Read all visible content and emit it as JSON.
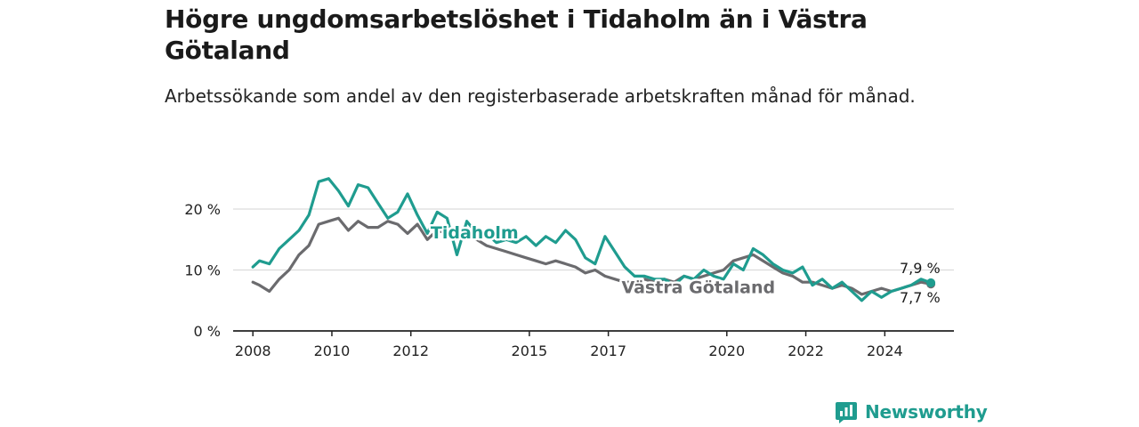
{
  "title": "Högre ungdomsarbetslöshet i Tidaholm än i Västra Götaland",
  "subtitle": "Arbetssökande som andel av den registerbaserade arbetskraften månad för månad.",
  "brand": {
    "name": "Newsworthy",
    "logo_icon": "newsworthy-logo-icon"
  },
  "colors": {
    "tidaholm": "#1f9c8f",
    "vastra_gotaland": "#6b6b6e",
    "grid": "#dcdcdc",
    "axis": "#222222"
  },
  "chart_data": {
    "type": "line",
    "title": "Högre ungdomsarbetslöshet i Tidaholm än i Västra Götaland",
    "xlabel": "",
    "ylabel": "",
    "ylim": [
      0,
      26
    ],
    "xlim": [
      "2007-07",
      "2025-10"
    ],
    "y_ticks": [
      0,
      10,
      20
    ],
    "y_tick_labels": [
      "0 %",
      "10 %",
      "20 %"
    ],
    "x_ticks": [
      "2008",
      "2010",
      "2012",
      "2015",
      "2017",
      "2020",
      "2022",
      "2024"
    ],
    "grid": true,
    "series": [
      {
        "name": "Tidaholm",
        "color": "#1f9c8f",
        "end_label": "7,9 %",
        "x": [
          "2008-01",
          "2008-03",
          "2008-06",
          "2008-09",
          "2008-12",
          "2009-03",
          "2009-06",
          "2009-09",
          "2009-12",
          "2010-03",
          "2010-06",
          "2010-09",
          "2010-12",
          "2011-03",
          "2011-06",
          "2011-09",
          "2011-12",
          "2012-03",
          "2012-06",
          "2012-09",
          "2012-12",
          "2013-03",
          "2013-06",
          "2013-09",
          "2013-12",
          "2014-03",
          "2014-06",
          "2014-09",
          "2014-12",
          "2015-03",
          "2015-06",
          "2015-09",
          "2015-12",
          "2016-03",
          "2016-06",
          "2016-09",
          "2016-12",
          "2017-03",
          "2017-06",
          "2017-09",
          "2017-12",
          "2018-03",
          "2018-06",
          "2018-09",
          "2018-12",
          "2019-03",
          "2019-06",
          "2019-09",
          "2019-12",
          "2020-03",
          "2020-06",
          "2020-09",
          "2020-12",
          "2021-03",
          "2021-06",
          "2021-09",
          "2021-12",
          "2022-03",
          "2022-06",
          "2022-09",
          "2022-12",
          "2023-03",
          "2023-06",
          "2023-09",
          "2023-12",
          "2024-03",
          "2024-06",
          "2024-09",
          "2024-12",
          "2025-03"
        ],
        "y": [
          10.5,
          11.5,
          11.0,
          13.5,
          15.0,
          16.5,
          19.0,
          24.5,
          25.0,
          23.0,
          20.5,
          24.0,
          23.5,
          21.0,
          18.5,
          19.5,
          22.5,
          19.0,
          16.0,
          19.5,
          18.5,
          12.5,
          18.0,
          16.0,
          16.0,
          14.5,
          15.0,
          14.5,
          15.5,
          14.0,
          15.5,
          14.5,
          16.5,
          15.0,
          12.0,
          11.0,
          15.5,
          13.0,
          10.5,
          9.0,
          9.0,
          8.5,
          8.5,
          7.5,
          9.0,
          8.5,
          10.0,
          9.0,
          8.5,
          11.0,
          10.0,
          13.5,
          12.5,
          11.0,
          10.0,
          9.5,
          10.5,
          7.5,
          8.5,
          7.0,
          8.0,
          6.5,
          5.0,
          6.5,
          5.5,
          6.5,
          7.0,
          7.5,
          8.5,
          7.9
        ]
      },
      {
        "name": "Västra Götaland",
        "color": "#6b6b6e",
        "end_label": "7,7 %",
        "x": [
          "2008-01",
          "2008-03",
          "2008-06",
          "2008-09",
          "2008-12",
          "2009-03",
          "2009-06",
          "2009-09",
          "2009-12",
          "2010-03",
          "2010-06",
          "2010-09",
          "2010-12",
          "2011-03",
          "2011-06",
          "2011-09",
          "2011-12",
          "2012-03",
          "2012-06",
          "2012-09",
          "2012-12",
          "2013-03",
          "2013-06",
          "2013-09",
          "2013-12",
          "2014-03",
          "2014-06",
          "2014-09",
          "2014-12",
          "2015-03",
          "2015-06",
          "2015-09",
          "2015-12",
          "2016-03",
          "2016-06",
          "2016-09",
          "2016-12",
          "2017-03",
          "2017-06",
          "2017-09",
          "2017-12",
          "2018-03",
          "2018-06",
          "2018-09",
          "2018-12",
          "2019-03",
          "2019-06",
          "2019-09",
          "2019-12",
          "2020-03",
          "2020-06",
          "2020-09",
          "2020-12",
          "2021-03",
          "2021-06",
          "2021-09",
          "2021-12",
          "2022-03",
          "2022-06",
          "2022-09",
          "2022-12",
          "2023-03",
          "2023-06",
          "2023-09",
          "2023-12",
          "2024-03",
          "2024-06",
          "2024-09",
          "2024-12",
          "2025-03"
        ],
        "y": [
          8.0,
          7.5,
          6.5,
          8.5,
          10.0,
          12.5,
          14.0,
          17.5,
          18.0,
          18.5,
          16.5,
          18.0,
          17.0,
          17.0,
          18.0,
          17.5,
          16.0,
          17.5,
          15.0,
          16.5,
          16.0,
          15.5,
          15.5,
          15.0,
          14.0,
          13.5,
          13.0,
          12.5,
          12.0,
          11.5,
          11.0,
          11.5,
          11.0,
          10.5,
          9.5,
          10.0,
          9.0,
          8.5,
          8.0,
          8.0,
          8.5,
          8.0,
          8.5,
          8.0,
          9.0,
          8.5,
          9.0,
          9.5,
          10.0,
          11.5,
          12.0,
          12.5,
          11.5,
          10.5,
          9.5,
          9.0,
          8.0,
          8.0,
          7.5,
          7.0,
          7.5,
          7.0,
          6.0,
          6.5,
          7.0,
          6.5,
          7.0,
          7.5,
          8.0,
          7.7
        ]
      }
    ],
    "annotations": [
      {
        "text": "Tidaholm",
        "series": "Tidaholm"
      },
      {
        "text": "Västra Götaland",
        "series": "Västra Götaland"
      }
    ]
  }
}
